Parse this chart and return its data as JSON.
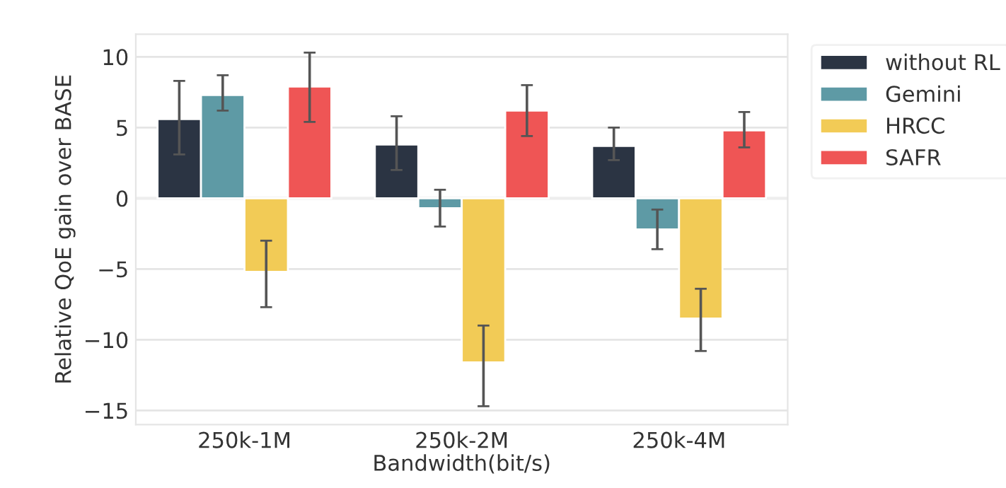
{
  "chart_data": {
    "type": "bar",
    "xlabel": "Bandwidth(bit/s)",
    "ylabel": "Relative QoE gain over BASE",
    "categories": [
      "250k-1M",
      "250k-2M",
      "250k-4M"
    ],
    "series": [
      {
        "name": "without RL",
        "color": "#2b3443",
        "values": [
          5.6,
          3.8,
          3.7
        ],
        "errors": [
          [
            3.1,
            8.3
          ],
          [
            2.0,
            5.8
          ],
          [
            2.7,
            5.0
          ]
        ]
      },
      {
        "name": "Gemini",
        "color": "#5e9aa5",
        "values": [
          7.3,
          -0.7,
          -2.2
        ],
        "errors": [
          [
            6.2,
            8.7
          ],
          [
            -2.0,
            0.6
          ],
          [
            -3.6,
            -0.8
          ]
        ]
      },
      {
        "name": "HRCC",
        "color": "#f2cb56",
        "values": [
          -5.2,
          -11.6,
          -8.5
        ],
        "errors": [
          [
            -7.7,
            -3.0
          ],
          [
            -14.7,
            -9.0
          ],
          [
            -10.8,
            -6.4
          ]
        ]
      },
      {
        "name": "SAFR",
        "color": "#ef5555",
        "values": [
          7.9,
          6.2,
          4.8
        ],
        "errors": [
          [
            5.4,
            10.3
          ],
          [
            4.4,
            8.0
          ],
          [
            3.6,
            6.1
          ]
        ]
      }
    ],
    "ylim": [
      -16,
      11.6
    ],
    "yticks": [
      -15,
      -10,
      -5,
      0,
      5,
      10
    ],
    "grid": "y",
    "legend": "top right"
  }
}
